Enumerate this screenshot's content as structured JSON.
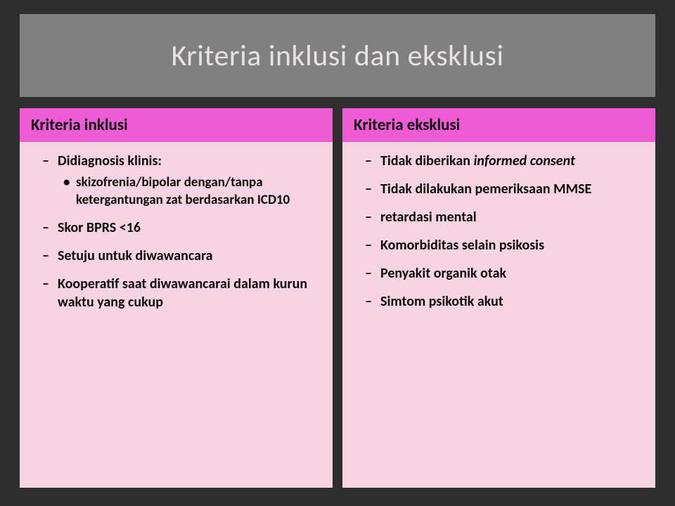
{
  "colors": {
    "page_bg": "#2e2e2e",
    "title_bg": "#808080",
    "title_text": "#e8e2e2",
    "col_header_bg": "#ee5bd4",
    "col_body_bg": "#f7d4e2",
    "text": "#0a0a0a"
  },
  "typography": {
    "title_fontsize": 42,
    "title_weight": 300,
    "header_fontsize": 23,
    "header_weight": 700,
    "body_fontsize": 20,
    "sub_fontsize": 19,
    "body_weight": 700
  },
  "layout": {
    "slide_width": 904,
    "slide_height": 680,
    "title_height": 118,
    "column_gap": 14
  },
  "title": "Kriteria inklusi dan eksklusi",
  "left": {
    "header": "Kriteria inklusi",
    "items": {
      "0": {
        "text": "Didiagnosis klinis:"
      },
      "0_sub": {
        "0": "skizofrenia/bipolar dengan/tanpa ketergantungan zat berdasarkan ICD10"
      },
      "1": "Skor BPRS <16",
      "2": "Setuju untuk diwawancara",
      "3": "Kooperatif saat diwawancarai dalam kurun waktu yang cukup"
    }
  },
  "right": {
    "header": "Kriteria eksklusi",
    "items": {
      "0_pre": "Tidak diberikan ",
      "0_em": "informed consent",
      "1": "Tidak dilakukan pemeriksaan MMSE",
      "2": "retardasi mental",
      "3": "Komorbiditas selain psikosis",
      "4": "Penyakit organik otak",
      "5": "Simtom psikotik akut"
    }
  }
}
